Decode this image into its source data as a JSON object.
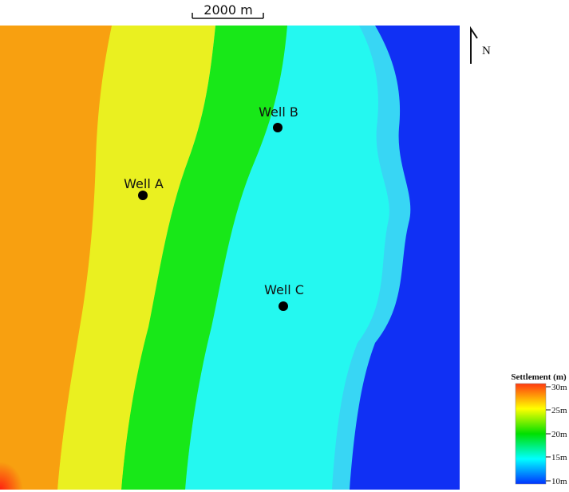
{
  "scale_bar": {
    "label": "2000 m"
  },
  "north_arrow": {
    "label": "N"
  },
  "wells": [
    {
      "name": "Well A"
    },
    {
      "name": "Well B"
    },
    {
      "name": "Well C"
    }
  ],
  "legend": {
    "title": "Settlement (m)",
    "ticks": [
      "30m",
      "25m",
      "20m",
      "15m",
      "10m"
    ],
    "colors": [
      "#ff3a10",
      "#ffff00",
      "#00e000",
      "#00ffff",
      "#0033ff"
    ]
  },
  "map_colors": {
    "zone_1": "#f8a010",
    "zone_2": "#eaf020",
    "zone_3": "#18e818",
    "zone_4": "#24f8f0",
    "zone_5": "#38d6f4",
    "zone_6": "#1030f4"
  }
}
